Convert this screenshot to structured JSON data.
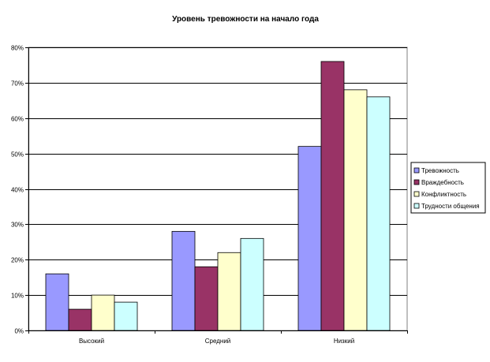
{
  "chart_data": {
    "type": "bar",
    "title": "Уровень тревожности на начало года",
    "xlabel": "",
    "ylabel": "",
    "categories": [
      "Высокий",
      "Средний",
      "Низкий"
    ],
    "series": [
      {
        "name": "Тревожность",
        "values": [
          16,
          28,
          52
        ],
        "color": "#9999ff"
      },
      {
        "name": "Враждебность",
        "values": [
          6,
          18,
          76
        ],
        "color": "#993366"
      },
      {
        "name": "Конфликтность",
        "values": [
          10,
          22,
          68
        ],
        "color": "#ffffcc"
      },
      {
        "name": "Трудности общения",
        "values": [
          8,
          26,
          66
        ],
        "color": "#ccffff"
      }
    ],
    "ylim": [
      0,
      80
    ],
    "yticks": [
      0,
      10,
      20,
      30,
      40,
      50,
      60,
      70,
      80
    ],
    "ytick_labels": [
      "0%",
      "10%",
      "20%",
      "30%",
      "40%",
      "50%",
      "60%",
      "70%",
      "80%"
    ],
    "grid": true,
    "legend_position": "right"
  }
}
